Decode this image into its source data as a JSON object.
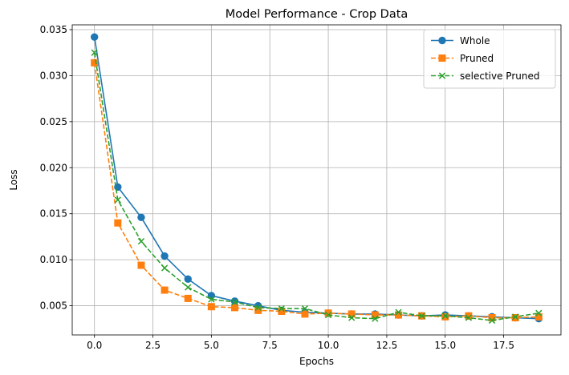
{
  "chart_data": {
    "type": "line",
    "title": "Model Performance - Crop Data",
    "xlabel": "Epochs",
    "ylabel": "Loss",
    "xlim": [
      -0.95,
      19.95
    ],
    "ylim": [
      0.00183,
      0.03552
    ],
    "xticks": [
      0.0,
      2.5,
      5.0,
      7.5,
      10.0,
      12.5,
      15.0,
      17.5
    ],
    "xtick_labels": [
      "0.0",
      "2.5",
      "5.0",
      "7.5",
      "10.0",
      "12.5",
      "15.0",
      "17.5"
    ],
    "yticks": [
      0.005,
      0.01,
      0.015,
      0.02,
      0.025,
      0.03,
      0.035
    ],
    "ytick_labels": [
      "0.005",
      "0.010",
      "0.015",
      "0.020",
      "0.025",
      "0.030",
      "0.035"
    ],
    "grid": true,
    "legend_position": "top-right",
    "x": [
      0,
      1,
      2,
      3,
      4,
      5,
      6,
      7,
      8,
      9,
      10,
      11,
      12,
      13,
      14,
      15,
      16,
      17,
      18,
      19
    ],
    "series": [
      {
        "name": "Whole",
        "color": "#1f77b4",
        "marker": "circle",
        "linestyle": "solid",
        "values": [
          0.0342,
          0.0179,
          0.0146,
          0.0104,
          0.0079,
          0.0061,
          0.0055,
          0.005,
          0.0045,
          0.0043,
          0.0042,
          0.0041,
          0.0041,
          0.004,
          0.0039,
          0.004,
          0.0039,
          0.0038,
          0.0037,
          0.0036
        ]
      },
      {
        "name": "Pruned",
        "color": "#ff7f0e",
        "marker": "square",
        "linestyle": "dashed",
        "values": [
          0.0314,
          0.014,
          0.0094,
          0.0067,
          0.0058,
          0.0049,
          0.0048,
          0.0045,
          0.0044,
          0.0041,
          0.0042,
          0.0041,
          0.004,
          0.004,
          0.0039,
          0.0038,
          0.0039,
          0.0037,
          0.0037,
          0.0038
        ]
      },
      {
        "name": "selective Pruned",
        "color": "#2ca02c",
        "marker": "x",
        "linestyle": "dashed",
        "values": [
          0.0325,
          0.0165,
          0.012,
          0.0091,
          0.007,
          0.0057,
          0.0054,
          0.0048,
          0.0047,
          0.0047,
          0.004,
          0.0037,
          0.0036,
          0.0043,
          0.0039,
          0.0039,
          0.0037,
          0.0034,
          0.0038,
          0.0042
        ]
      }
    ]
  }
}
